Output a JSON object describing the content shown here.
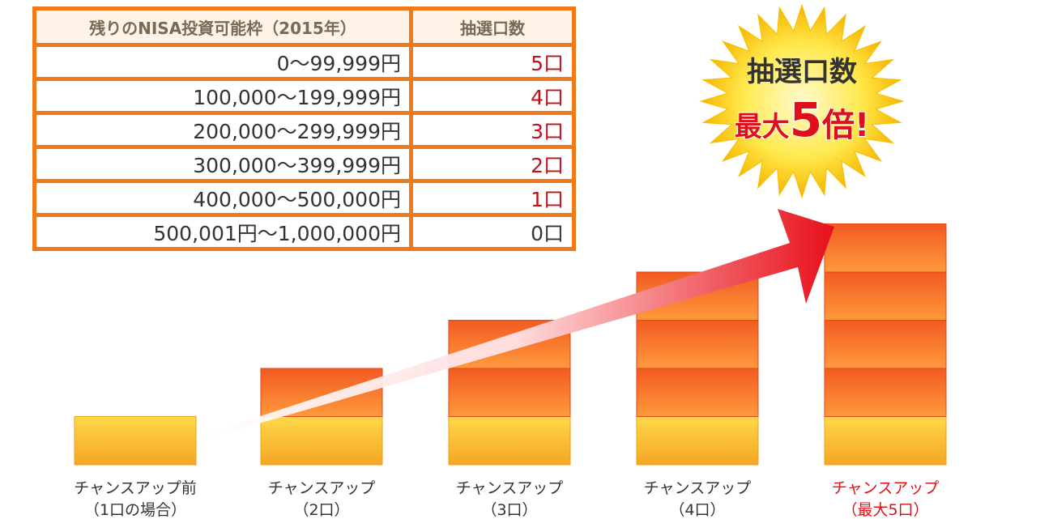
{
  "table": {
    "header": [
      "残りのNISA投資可能枠（2015年）",
      "抽選口数"
    ],
    "rows": [
      [
        "0～99,999円",
        "5口"
      ],
      [
        "100,000～199,999円",
        "4口"
      ],
      [
        "200,000～299,999円",
        "3口"
      ],
      [
        "300,000～399,999円",
        "2口"
      ],
      [
        "400,000～500,000円",
        "1口"
      ],
      [
        "500,001円～1,000,000円",
        "0口"
      ]
    ]
  },
  "badge": {
    "line1": "抽選口数",
    "line2a": "最大",
    "line2b": "5",
    "line2c": "倍!"
  },
  "columns": [
    [
      "チャンスアップ前",
      "（1口の場合）"
    ],
    [
      "チャンスアップ",
      "（2口）"
    ],
    [
      "チャンスアップ",
      "（3口）"
    ],
    [
      "チャンスアップ",
      "（4口）"
    ],
    [
      "チャンスアップ",
      "（最大5口）"
    ]
  ]
}
